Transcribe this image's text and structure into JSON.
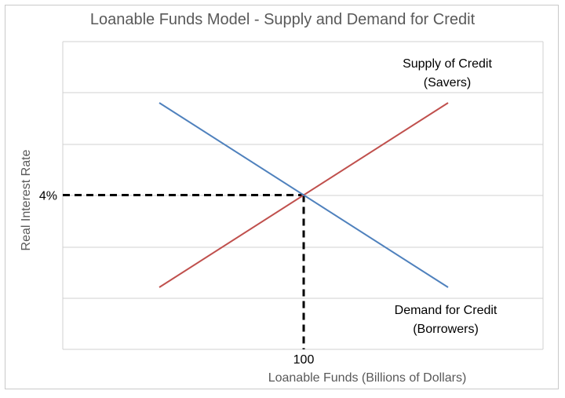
{
  "chart_data": {
    "type": "line",
    "title": "Loanable Funds Model - Supply and Demand for Credit",
    "xlabel": "Loanable Funds (Billions of Dollars)",
    "ylabel": "Real Interest Rate",
    "x_ticks": [
      {
        "value": 100,
        "label": "100"
      }
    ],
    "y_ticks": [
      {
        "value": 4,
        "label": "4%"
      }
    ],
    "grid": "horizontal",
    "series": [
      {
        "name": "Supply of Credit (Savers)",
        "label_lines": [
          "Supply of Credit",
          "(Savers)"
        ],
        "label_position": "top-right",
        "color": "#c0504d",
        "points": [
          [
            40,
            2
          ],
          [
            160,
            6
          ]
        ]
      },
      {
        "name": "Demand for Credit (Borrowers)",
        "label_lines": [
          "Demand for Credit",
          "(Borrowers)"
        ],
        "label_position": "bottom-right",
        "color": "#4f81bd",
        "points": [
          [
            40,
            6
          ],
          [
            160,
            2
          ]
        ]
      }
    ],
    "equilibrium": {
      "x": 100,
      "y": 4,
      "guide_style": "dashed",
      "guide_color": "#000000"
    }
  },
  "colors": {
    "grid": "#d0d0d0",
    "axis_text": "#595959",
    "frame": "#c9c9c9"
  }
}
